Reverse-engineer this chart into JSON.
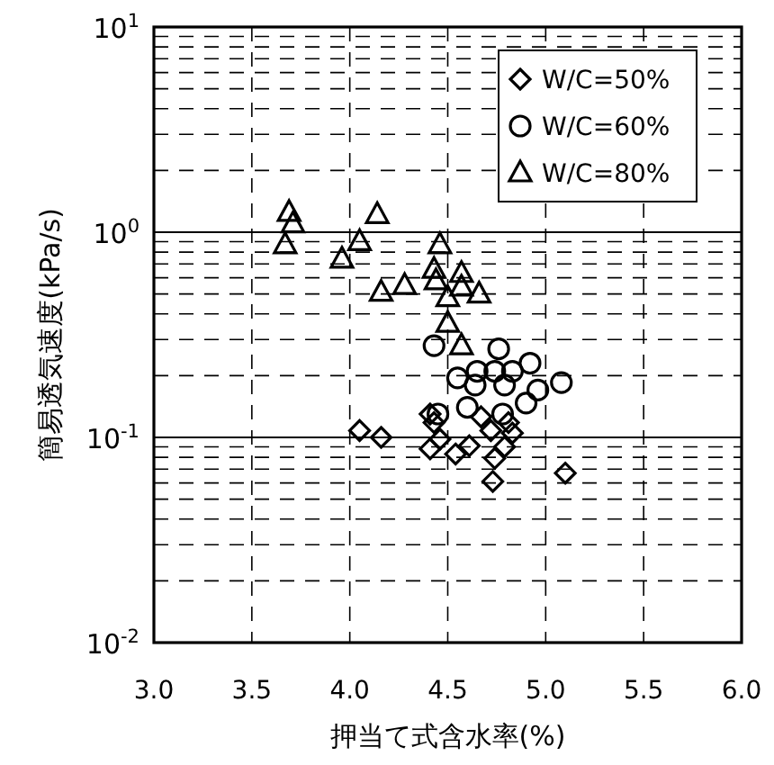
{
  "chart_data": {
    "type": "scatter",
    "xlabel": "押当て式含水率(%)",
    "ylabel": "簡易透気速度(kPa/s)",
    "log": "y",
    "grid": true,
    "legend": "top right",
    "xlim": [
      3,
      6
    ],
    "ylim": [
      0.01,
      10
    ],
    "xticks": [
      {
        "value": 3,
        "label": "3.0"
      },
      {
        "value": 3.5,
        "label": "3.5"
      },
      {
        "value": 4,
        "label": "4.0"
      },
      {
        "value": 4.5,
        "label": "4.5"
      },
      {
        "value": 5,
        "label": "5.0"
      },
      {
        "value": 5.5,
        "label": "5.5"
      },
      {
        "value": 6,
        "label": "6.0"
      }
    ],
    "yticks": [
      {
        "value": 0.01,
        "label": "10$^{-2}$"
      },
      {
        "value": 0.1,
        "label": "10$^{-1}$"
      },
      {
        "value": 1,
        "label": "10$^{0}$"
      },
      {
        "value": 10,
        "label": "10$^{1}$"
      }
    ],
    "series": [
      {
        "name": "W/C=50%",
        "color": "#000000",
        "marker": "diamond",
        "x": [
          4.05,
          4.16,
          4.41,
          4.43,
          4.67,
          4.72,
          4.81,
          4.83,
          4.46,
          4.41,
          4.61,
          4.54,
          4.79,
          4.74,
          4.73,
          5.1
        ],
        "values": [
          0.108,
          0.1,
          0.13,
          0.118,
          0.126,
          0.108,
          0.118,
          0.105,
          0.098,
          0.088,
          0.091,
          0.083,
          0.09,
          0.079,
          0.061,
          0.067
        ]
      },
      {
        "name": "W/C=60%",
        "color": "#000000",
        "marker": "circle",
        "x": [
          4.43,
          4.76,
          4.92,
          4.65,
          4.74,
          4.83,
          4.55,
          4.64,
          4.79,
          4.96,
          5.08,
          4.9,
          4.6,
          4.78,
          4.45
        ],
        "values": [
          0.28,
          0.27,
          0.23,
          0.21,
          0.21,
          0.21,
          0.195,
          0.18,
          0.18,
          0.17,
          0.185,
          0.147,
          0.14,
          0.13,
          0.13
        ]
      },
      {
        "name": "W/C=80%",
        "color": "#000000",
        "marker": "triangle",
        "x": [
          3.69,
          3.71,
          3.67,
          4.14,
          4.05,
          3.96,
          4.46,
          4.43,
          4.44,
          4.57,
          4.57,
          4.66,
          4.5,
          4.16,
          4.28,
          4.5,
          4.57
        ],
        "values": [
          1.25,
          1.1,
          0.87,
          1.22,
          0.9,
          0.74,
          0.87,
          0.66,
          0.58,
          0.63,
          0.54,
          0.5,
          0.48,
          0.51,
          0.55,
          0.36,
          0.28
        ]
      }
    ]
  }
}
